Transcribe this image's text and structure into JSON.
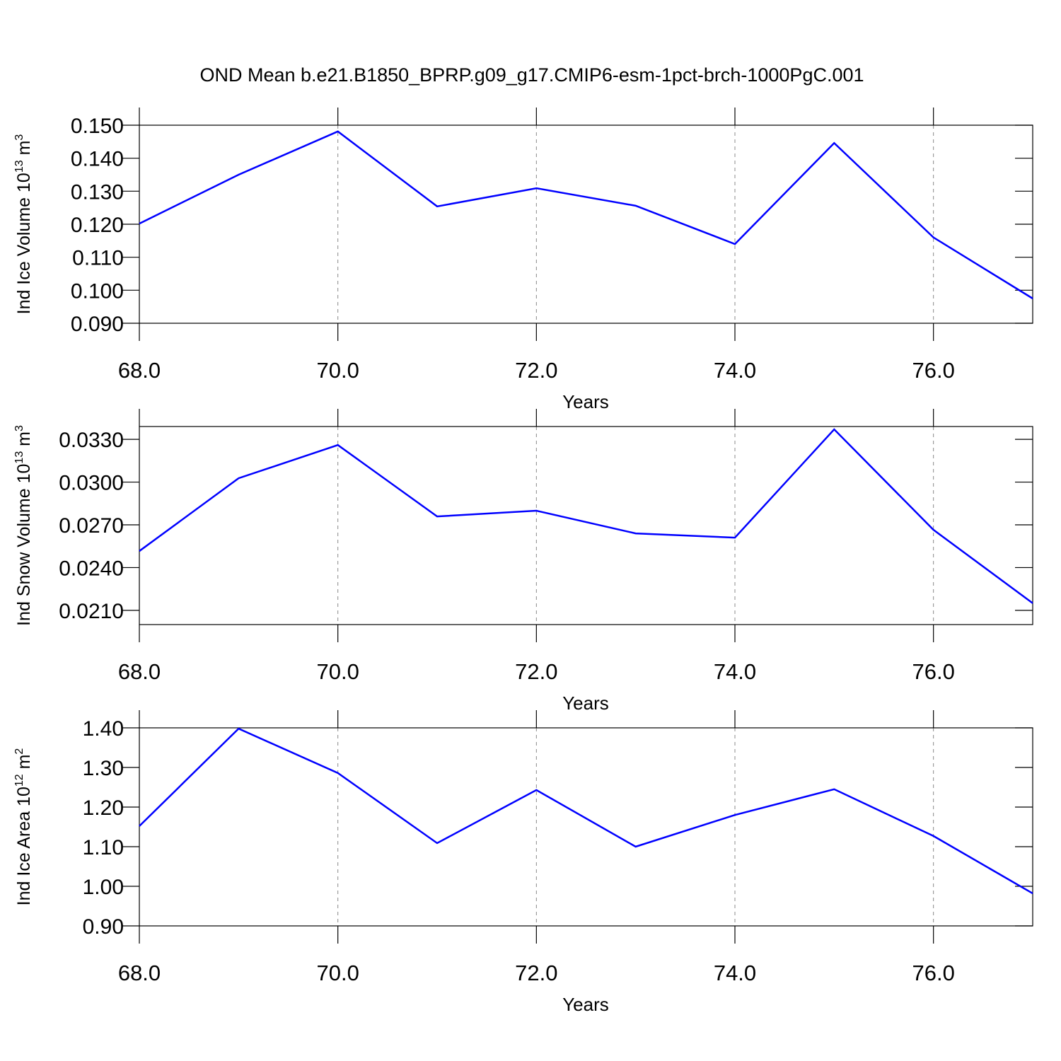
{
  "chart_data": [
    {
      "type": "line",
      "title": "OND Mean b.e21.B1850_BPRP.g09_g17.CMIP6-esm-1pct-brch-1000PgC.001",
      "xlabel": "Years",
      "ylabel": [
        "Ind Ice Volume 10",
        "13",
        " m",
        "3"
      ],
      "x": [
        68,
        69,
        70,
        71,
        72,
        73,
        74,
        75,
        76,
        77
      ],
      "values": [
        0.1202,
        0.135,
        0.1481,
        0.1254,
        0.1309,
        0.1256,
        0.114,
        0.1446,
        0.116,
        0.0975
      ],
      "color": "#0000ff",
      "grid": "x",
      "xlim": [
        68,
        77
      ],
      "xticks": [
        {
          "value": 68,
          "label": "68.0"
        },
        {
          "value": 70,
          "label": "70.0"
        },
        {
          "value": 72,
          "label": "72.0"
        },
        {
          "value": 74,
          "label": "74.0"
        },
        {
          "value": 76,
          "label": "76.0"
        }
      ],
      "ylim": [
        0.09,
        0.15
      ],
      "yticks": [
        {
          "value": 0.09,
          "label": "0.090"
        },
        {
          "value": 0.1,
          "label": "0.100"
        },
        {
          "value": 0.11,
          "label": "0.110"
        },
        {
          "value": 0.12,
          "label": "0.120"
        },
        {
          "value": 0.13,
          "label": "0.130"
        },
        {
          "value": 0.14,
          "label": "0.140"
        },
        {
          "value": 0.15,
          "label": "0.150"
        }
      ]
    },
    {
      "type": "line",
      "xlabel": "Years",
      "ylabel": [
        "Ind Snow Volume 10",
        "13",
        " m",
        "3"
      ],
      "x": [
        68,
        69,
        70,
        71,
        72,
        73,
        74,
        75,
        76,
        77
      ],
      "values": [
        0.02516,
        0.03027,
        0.0326,
        0.02759,
        0.02799,
        0.0264,
        0.0261,
        0.0337,
        0.02665,
        0.0215
      ],
      "color": "#0000ff",
      "grid": "x",
      "xlim": [
        68,
        77
      ],
      "xticks": [
        {
          "value": 68,
          "label": "68.0"
        },
        {
          "value": 70,
          "label": "70.0"
        },
        {
          "value": 72,
          "label": "72.0"
        },
        {
          "value": 74,
          "label": "74.0"
        },
        {
          "value": 76,
          "label": "76.0"
        }
      ],
      "ylim": [
        0.02,
        0.0339
      ],
      "yticks": [
        {
          "value": 0.021,
          "label": "0.0210"
        },
        {
          "value": 0.024,
          "label": "0.0240"
        },
        {
          "value": 0.027,
          "label": "0.0270"
        },
        {
          "value": 0.03,
          "label": "0.0300"
        },
        {
          "value": 0.033,
          "label": "0.0330"
        }
      ]
    },
    {
      "type": "line",
      "xlabel": "Years",
      "ylabel": [
        "Ind Ice Area 10",
        "12",
        " m",
        "2"
      ],
      "x": [
        68,
        69,
        70,
        71,
        72,
        73,
        74,
        75,
        76,
        77
      ],
      "values": [
        1.152,
        1.398,
        1.286,
        1.109,
        1.243,
        1.1,
        1.18,
        1.245,
        1.127,
        0.982
      ],
      "color": "#0000ff",
      "grid": "x",
      "xlim": [
        68,
        77
      ],
      "xticks": [
        {
          "value": 68,
          "label": "68.0"
        },
        {
          "value": 70,
          "label": "70.0"
        },
        {
          "value": 72,
          "label": "72.0"
        },
        {
          "value": 74,
          "label": "74.0"
        },
        {
          "value": 76,
          "label": "76.0"
        }
      ],
      "ylim": [
        0.9,
        1.4
      ],
      "yticks": [
        {
          "value": 0.9,
          "label": "0.90"
        },
        {
          "value": 1.0,
          "label": "1.00"
        },
        {
          "value": 1.1,
          "label": "1.10"
        },
        {
          "value": 1.2,
          "label": "1.20"
        },
        {
          "value": 1.3,
          "label": "1.30"
        },
        {
          "value": 1.4,
          "label": "1.40"
        }
      ]
    }
  ]
}
